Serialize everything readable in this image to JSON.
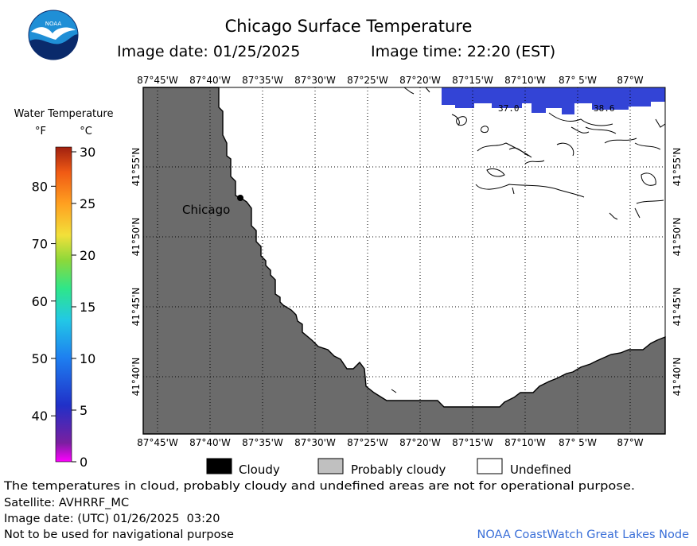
{
  "header": {
    "title": "Chicago Surface Temperature",
    "image_date_label": "Image date: 01/25/2025",
    "image_time_label": "Image time: 22:20 (EST)"
  },
  "logo": {
    "text": "NOAA",
    "colors": {
      "sky": "#1f8fd6",
      "navy": "#0a2a6b",
      "bird": "#ffffff"
    }
  },
  "colorbar": {
    "title": "Water Temperature",
    "unit_f": "°F",
    "unit_c": "°C",
    "f_ticks": [
      "80",
      "70",
      "60",
      "50",
      "40"
    ],
    "c_ticks": [
      "30",
      "25",
      "20",
      "15",
      "10",
      "5",
      "0"
    ],
    "gradient": [
      "#ff00ff",
      "#7a1fa0",
      "#2030c8",
      "#1e7ff0",
      "#22c8e6",
      "#2ee68a",
      "#8cd83a",
      "#f2e03a",
      "#ffa020",
      "#f05a14",
      "#a02010"
    ]
  },
  "map": {
    "top_lon_labels": [
      "87°45'W",
      "87°40'W",
      "87°35'W",
      "87°30'W",
      "87°25'W",
      "87°20'W",
      "87°15'W",
      "87°10'W",
      "87° 5'W",
      "87°W"
    ],
    "bottom_lon_labels": [
      "87°45'W",
      "87°40'W",
      "87°35'W",
      "87°30'W",
      "87°25'W",
      "87°20'W",
      "87°15'W",
      "87°10'W",
      "87° 5'W",
      "87°W"
    ],
    "lat_labels": [
      "41°55'N",
      "41°50'N",
      "41°45'N",
      "41°40'N"
    ],
    "city": "Chicago",
    "temp_labels": [
      "37.0",
      "38.6"
    ],
    "land_color": "#6b6b6b",
    "water_color": "#3344d6"
  },
  "legend": {
    "cloudy": "Cloudy",
    "probably_cloudy": "Probably cloudy",
    "undefined": "Undefined"
  },
  "footer": {
    "disclaimer": "The temperatures in cloud, probably cloudy and undefined areas are not for operational purpose.",
    "satellite": "Satellite: AVHRRF_MC",
    "utc_date": "Image date: (UTC) 01/26/2025  03:20",
    "nav_warning": "Not to be used for navigational purpose",
    "credit": "NOAA CoastWatch Great Lakes Node",
    "credit_color": "#3a6fd8"
  }
}
